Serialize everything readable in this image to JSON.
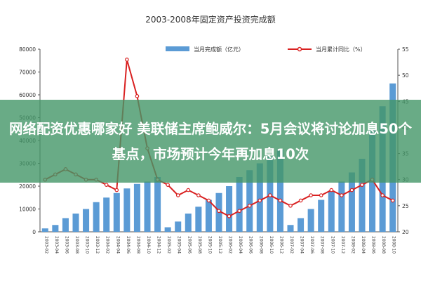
{
  "chart_data": {
    "type": "bar+line",
    "title": "2003-2008年固定资产投资完成额",
    "legend_position": "top",
    "y_left": {
      "ylim": [
        0,
        80000
      ],
      "ticks": [
        "0",
        "10000",
        "20000",
        "30000",
        "40000",
        "50000",
        "60000",
        "70000",
        "80000"
      ]
    },
    "y_right": {
      "ylim": [
        20,
        55
      ],
      "ticks": [
        "20",
        "25",
        "30",
        "35",
        "40",
        "45",
        "50",
        "55"
      ]
    },
    "x_labels": [
      "2003-02",
      "2003-04",
      "2003-06",
      "2003-08",
      "2003-10",
      "2003-12",
      "2004-02",
      "2004-04",
      "2004-06",
      "2004-08",
      "2004-10",
      "2004-12",
      "2005-02",
      "2005-04",
      "2005-06",
      "2005-08",
      "2005-10",
      "2005-12",
      "2006-02",
      "2006-04",
      "2006-06",
      "2006-08",
      "2006-10",
      "2006-12",
      "2007-02",
      "2007-04",
      "2007-06",
      "2007-08",
      "2007-10",
      "2007-12",
      "2008-02",
      "2008-04",
      "2008-06",
      "2008-08",
      "2008-10"
    ],
    "series": [
      {
        "name": "当月完成额（亿元）",
        "type": "bar",
        "axis": "left",
        "color": "#5b9bd5",
        "values": [
          1500,
          3000,
          6000,
          8000,
          10000,
          13000,
          15000,
          17000,
          19000,
          21000,
          22000,
          24000,
          2000,
          4500,
          8000,
          11000,
          14000,
          17000,
          20000,
          24000,
          27000,
          30000,
          33000,
          36000,
          3000,
          6000,
          10000,
          14000,
          18000,
          22000,
          26000,
          32000,
          45000,
          55000,
          65000
        ]
      },
      {
        "name": "当月累计同比（%）",
        "type": "line",
        "axis": "right",
        "color": "#d92121",
        "values": [
          30,
          31,
          32,
          31,
          30,
          30,
          29,
          28,
          53,
          46,
          36,
          30,
          29,
          27,
          28,
          27,
          26,
          24,
          23,
          24,
          25,
          26,
          27,
          26,
          25,
          26,
          27,
          27,
          28,
          27,
          28,
          29,
          30,
          27,
          26
        ]
      }
    ]
  },
  "overlay": {
    "headline": "网络配资优惠哪家好 美联储主席鲍威尔：5月会议将讨论加息50个基点，市场预计今年再加息10次"
  }
}
